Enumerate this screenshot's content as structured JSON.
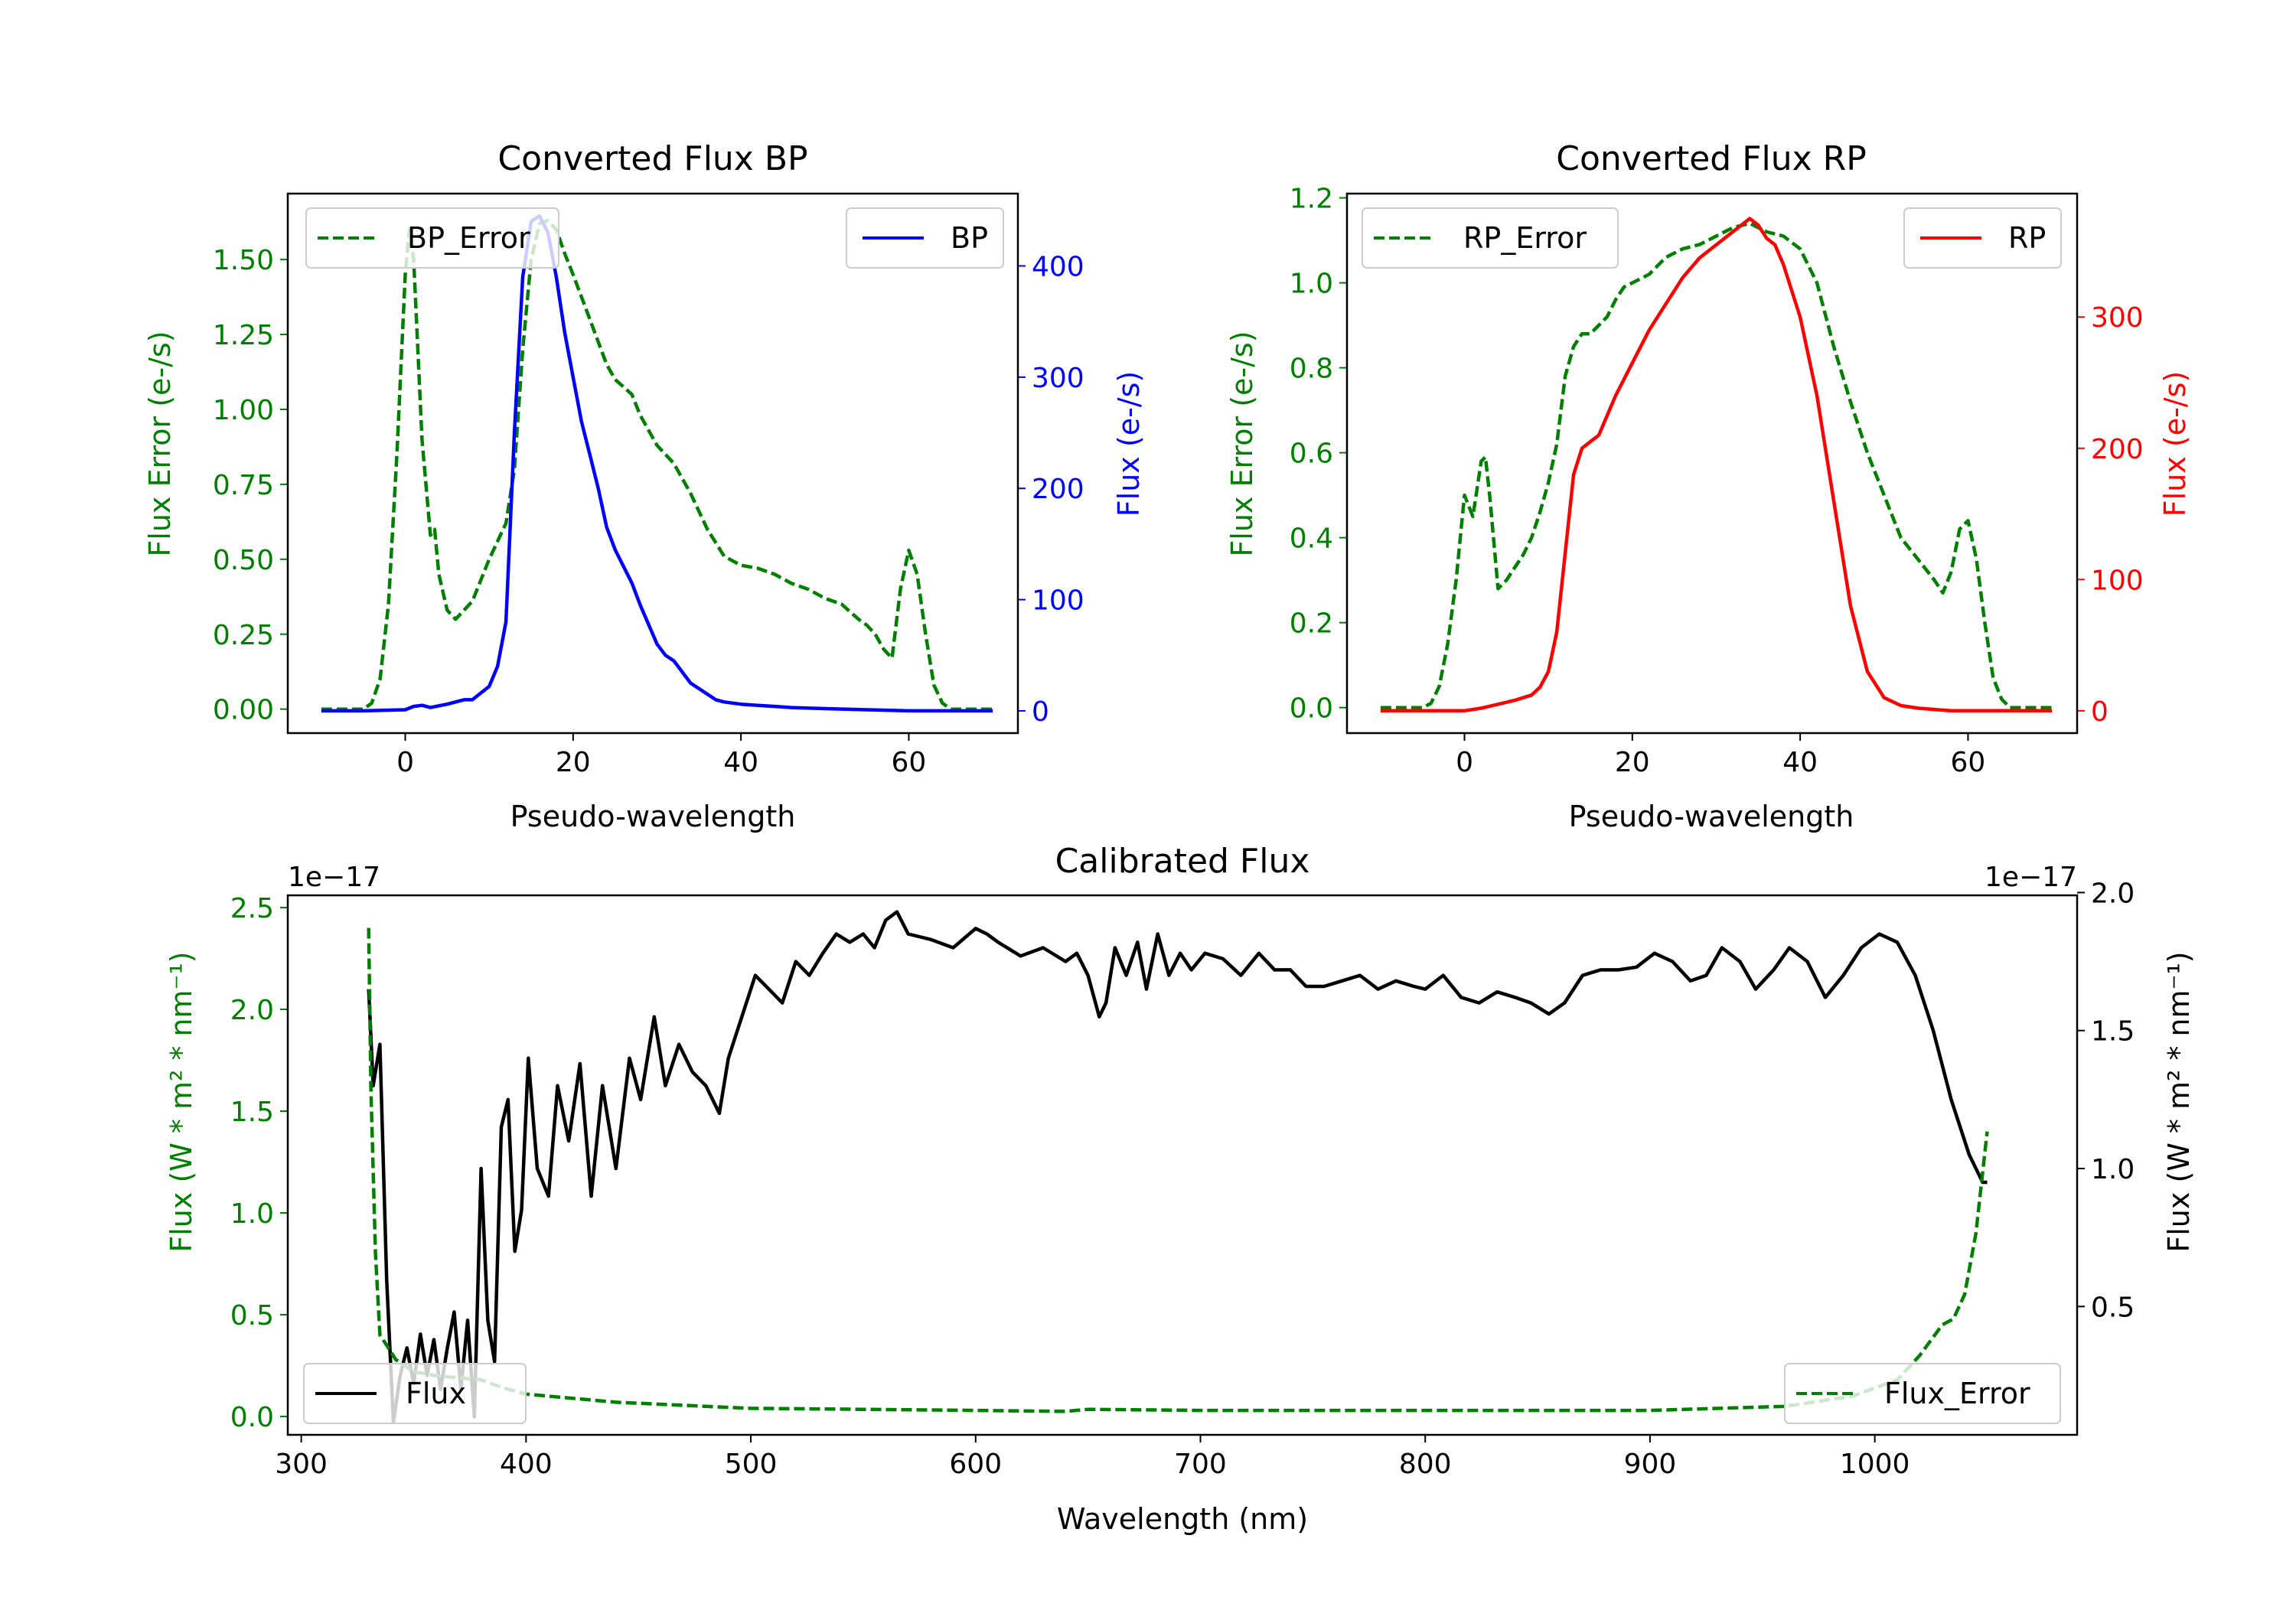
{
  "chart_data": [
    {
      "id": "bp",
      "type": "line",
      "title": "Converted Flux BP",
      "xlabel": "Pseudo-wavelength",
      "xlim": [
        -14,
        73
      ],
      "xticks": [
        0,
        20,
        40,
        60
      ],
      "left_axis": {
        "label": "Flux Error (e-/s)",
        "color": "#008000",
        "ylim": [
          -0.08,
          1.72
        ],
        "ticks": [
          0.0,
          0.25,
          0.5,
          0.75,
          1.0,
          1.25,
          1.5
        ],
        "tick_labels": [
          "0.00",
          "0.25",
          "0.50",
          "0.75",
          "1.00",
          "1.25",
          "1.50"
        ]
      },
      "right_axis": {
        "label": "Flux (e-/s)",
        "color": "#0000ff",
        "ylim": [
          -20,
          465
        ],
        "ticks": [
          0,
          100,
          200,
          300,
          400
        ],
        "tick_labels": [
          "0",
          "100",
          "200",
          "300",
          "400"
        ]
      },
      "series": [
        {
          "name": "BP_Error",
          "axis": "left",
          "color": "#008000",
          "style": "dashed",
          "x": [
            -10,
            -5,
            -4,
            -3,
            -2,
            -1,
            0,
            0.5,
            1,
            2,
            3,
            3.5,
            4,
            5,
            6,
            8,
            10,
            12,
            13,
            14,
            15,
            16,
            17,
            18,
            19,
            20,
            22,
            24,
            25,
            27,
            28,
            30,
            32,
            34,
            36,
            38,
            40,
            42,
            44,
            46,
            48,
            50,
            52,
            54,
            55,
            56,
            57,
            58,
            59,
            60,
            61,
            62,
            63,
            64,
            65,
            70
          ],
          "y": [
            0,
            0,
            0.02,
            0.1,
            0.35,
            0.85,
            1.45,
            1.6,
            1.5,
            0.9,
            0.58,
            0.6,
            0.45,
            0.33,
            0.3,
            0.36,
            0.5,
            0.62,
            0.8,
            1.2,
            1.5,
            1.62,
            1.63,
            1.6,
            1.52,
            1.45,
            1.3,
            1.15,
            1.1,
            1.05,
            0.98,
            0.88,
            0.82,
            0.72,
            0.6,
            0.51,
            0.48,
            0.47,
            0.45,
            0.42,
            0.4,
            0.37,
            0.35,
            0.3,
            0.28,
            0.25,
            0.2,
            0.17,
            0.4,
            0.53,
            0.45,
            0.25,
            0.08,
            0.02,
            0,
            0
          ]
        },
        {
          "name": "BP",
          "axis": "right",
          "color": "#0000ff",
          "style": "solid",
          "x": [
            -10,
            -5,
            0,
            1,
            2,
            3,
            5,
            7,
            8,
            10,
            11,
            12,
            13,
            14,
            15,
            16,
            17,
            18,
            19,
            20,
            21,
            22,
            23,
            24,
            25,
            26,
            27,
            28,
            30,
            31,
            32,
            33,
            34,
            35,
            36,
            37,
            38,
            40,
            42,
            44,
            46,
            50,
            55,
            60,
            65,
            70
          ],
          "y": [
            0,
            0,
            1,
            4,
            5,
            3,
            6,
            10,
            10,
            22,
            40,
            80,
            250,
            390,
            440,
            445,
            430,
            390,
            340,
            300,
            260,
            230,
            200,
            165,
            145,
            130,
            115,
            95,
            60,
            50,
            45,
            35,
            25,
            20,
            15,
            10,
            8,
            6,
            5,
            4,
            3,
            2,
            1,
            0,
            0,
            0
          ]
        }
      ],
      "legend": [
        {
          "label": "BP_Error",
          "position": "upper-left"
        },
        {
          "label": "BP",
          "position": "upper-right"
        }
      ]
    },
    {
      "id": "rp",
      "type": "line",
      "title": "Converted Flux RP",
      "xlabel": "Pseudo-wavelength",
      "xlim": [
        -14,
        73
      ],
      "xticks": [
        0,
        20,
        40,
        60
      ],
      "left_axis": {
        "label": "Flux Error (e-/s)",
        "color": "#008000",
        "ylim": [
          -0.06,
          1.21
        ],
        "ticks": [
          0.0,
          0.2,
          0.4,
          0.6,
          0.8,
          1.0,
          1.2
        ],
        "tick_labels": [
          "0.0",
          "0.2",
          "0.4",
          "0.6",
          "0.8",
          "1.0",
          "1.2"
        ]
      },
      "right_axis": {
        "label": "Flux (e-/s)",
        "color": "#ff0000",
        "ylim": [
          -17,
          394
        ],
        "ticks": [
          0,
          100,
          200,
          300
        ],
        "tick_labels": [
          "0",
          "100",
          "200",
          "300"
        ]
      },
      "series": [
        {
          "name": "RP_Error",
          "axis": "left",
          "color": "#008000",
          "style": "dashed",
          "x": [
            -10,
            -5,
            -4,
            -3,
            -2,
            -1,
            0,
            1,
            2,
            2.5,
            3,
            4,
            5,
            6,
            7,
            8,
            9,
            10,
            11,
            12,
            13,
            14,
            15,
            16,
            17,
            18,
            19,
            20,
            22,
            24,
            26,
            28,
            30,
            32,
            34,
            36,
            38,
            40,
            42,
            44,
            46,
            48,
            50,
            52,
            54,
            56,
            57,
            58,
            59,
            60,
            61,
            62,
            63,
            64,
            65,
            70
          ],
          "y": [
            0,
            0,
            0.01,
            0.05,
            0.15,
            0.3,
            0.5,
            0.45,
            0.58,
            0.59,
            0.5,
            0.28,
            0.3,
            0.33,
            0.36,
            0.4,
            0.46,
            0.53,
            0.62,
            0.78,
            0.85,
            0.88,
            0.88,
            0.9,
            0.92,
            0.96,
            0.99,
            1.0,
            1.02,
            1.06,
            1.08,
            1.09,
            1.11,
            1.13,
            1.14,
            1.12,
            1.11,
            1.08,
            1.0,
            0.85,
            0.72,
            0.6,
            0.5,
            0.4,
            0.35,
            0.3,
            0.27,
            0.32,
            0.42,
            0.44,
            0.35,
            0.2,
            0.07,
            0.02,
            0,
            0
          ]
        },
        {
          "name": "RP",
          "axis": "right",
          "color": "#ff0000",
          "style": "solid",
          "x": [
            -10,
            -5,
            -2,
            0,
            2,
            4,
            6,
            8,
            9,
            10,
            11,
            12,
            13,
            14,
            15,
            16,
            18,
            20,
            22,
            24,
            26,
            28,
            30,
            32,
            34,
            35,
            36,
            37,
            38,
            40,
            42,
            44,
            46,
            48,
            50,
            52,
            54,
            56,
            58,
            60,
            65,
            70
          ],
          "y": [
            0,
            0,
            0,
            0,
            2,
            5,
            8,
            12,
            18,
            30,
            60,
            120,
            180,
            200,
            205,
            210,
            240,
            265,
            290,
            310,
            330,
            345,
            355,
            365,
            375,
            370,
            360,
            355,
            340,
            300,
            240,
            160,
            80,
            30,
            10,
            4,
            2,
            1,
            0,
            0,
            0,
            0
          ]
        }
      ],
      "legend": [
        {
          "label": "RP_Error",
          "position": "upper-left"
        },
        {
          "label": "RP",
          "position": "upper-right"
        }
      ]
    },
    {
      "id": "cal",
      "type": "line",
      "title": "Calibrated Flux",
      "xlabel": "Wavelength (nm)",
      "xlim": [
        294,
        1090
      ],
      "xticks": [
        300,
        400,
        500,
        600,
        700,
        800,
        900,
        1000
      ],
      "left_axis": {
        "label": "Flux (W * m² * nm⁻¹)",
        "color": "#008000",
        "ylim": [
          -0.09,
          2.56
        ],
        "ticks": [
          0.0,
          0.5,
          1.0,
          1.5,
          2.0,
          2.5
        ],
        "tick_labels": [
          "0.0",
          "0.5",
          "1.0",
          "1.5",
          "2.0",
          "2.5"
        ],
        "offset_text": "1e−17"
      },
      "right_axis": {
        "label": "Flux (W * m² * nm⁻¹)",
        "color": "#000000",
        "ylim": [
          0.035,
          1.99
        ],
        "ticks": [
          0.5,
          1.0,
          1.5,
          2.0
        ],
        "tick_labels": [
          "0.5",
          "1.0",
          "1.5",
          "2.0"
        ],
        "offset_text": "1e−17"
      },
      "series": [
        {
          "name": "Flux",
          "axis": "right",
          "color": "#000000",
          "style": "solid",
          "x": [
            330,
            332,
            335,
            338,
            341,
            344,
            347,
            350,
            353,
            356,
            359,
            362,
            365,
            368,
            371,
            374,
            377,
            380,
            383,
            386,
            389,
            392,
            395,
            398,
            401,
            405,
            410,
            414,
            419,
            424,
            429,
            434,
            440,
            446,
            451,
            457,
            462,
            468,
            474,
            480,
            486,
            490,
            496,
            502,
            508,
            514,
            520,
            526,
            532,
            538,
            544,
            550,
            555,
            560,
            565,
            570,
            580,
            590,
            600,
            605,
            610,
            620,
            630,
            640,
            645,
            650,
            655,
            658,
            662,
            667,
            672,
            676,
            681,
            686,
            691,
            696,
            702,
            710,
            718,
            726,
            733,
            740,
            747,
            755,
            763,
            771,
            779,
            787,
            795,
            800,
            808,
            816,
            824,
            832,
            840,
            847,
            855,
            862,
            870,
            878,
            886,
            894,
            902,
            910,
            918,
            925,
            932,
            940,
            947,
            955,
            962,
            970,
            978,
            986,
            994,
            1002,
            1010,
            1018,
            1026,
            1034,
            1042,
            1048,
            1050
          ],
          "y": [
            1.65,
            1.3,
            1.45,
            0.6,
            0.08,
            0.25,
            0.35,
            0.22,
            0.4,
            0.25,
            0.38,
            0.2,
            0.35,
            0.48,
            0.2,
            0.45,
            0.1,
            1.0,
            0.45,
            0.3,
            1.15,
            1.25,
            0.7,
            0.85,
            1.4,
            1.0,
            0.9,
            1.3,
            1.1,
            1.38,
            0.9,
            1.3,
            1.0,
            1.4,
            1.25,
            1.55,
            1.3,
            1.45,
            1.35,
            1.3,
            1.2,
            1.4,
            1.55,
            1.7,
            1.65,
            1.6,
            1.75,
            1.7,
            1.78,
            1.85,
            1.82,
            1.85,
            1.8,
            1.9,
            1.93,
            1.85,
            1.83,
            1.8,
            1.87,
            1.85,
            1.82,
            1.77,
            1.8,
            1.75,
            1.78,
            1.7,
            1.55,
            1.6,
            1.8,
            1.7,
            1.82,
            1.65,
            1.85,
            1.7,
            1.78,
            1.72,
            1.78,
            1.76,
            1.7,
            1.78,
            1.72,
            1.72,
            1.66,
            1.66,
            1.68,
            1.7,
            1.65,
            1.68,
            1.66,
            1.65,
            1.7,
            1.62,
            1.6,
            1.64,
            1.62,
            1.6,
            1.56,
            1.6,
            1.7,
            1.72,
            1.72,
            1.73,
            1.78,
            1.75,
            1.68,
            1.7,
            1.8,
            1.75,
            1.65,
            1.72,
            1.8,
            1.75,
            1.62,
            1.7,
            1.8,
            1.85,
            1.82,
            1.7,
            1.5,
            1.25,
            1.05,
            0.95,
            0.95
          ]
        },
        {
          "name": "Flux_Error",
          "axis": "left",
          "color": "#008000",
          "style": "dashed",
          "x": [
            330,
            331,
            333,
            335,
            338,
            342,
            350,
            360,
            370,
            380,
            390,
            400,
            420,
            440,
            460,
            480,
            500,
            550,
            600,
            640,
            650,
            700,
            800,
            900,
            960,
            990,
            1010,
            1020,
            1030,
            1035,
            1040,
            1045,
            1048,
            1050
          ],
          "y": [
            2.4,
            1.6,
            0.8,
            0.4,
            0.35,
            0.28,
            0.22,
            0.2,
            0.19,
            0.18,
            0.14,
            0.11,
            0.09,
            0.07,
            0.06,
            0.05,
            0.04,
            0.035,
            0.03,
            0.025,
            0.035,
            0.03,
            0.03,
            0.03,
            0.05,
            0.1,
            0.18,
            0.3,
            0.45,
            0.48,
            0.6,
            0.9,
            1.2,
            1.4
          ]
        }
      ],
      "legend": [
        {
          "label": "Flux",
          "position": "lower-left"
        },
        {
          "label": "Flux_Error",
          "position": "lower-right"
        }
      ]
    }
  ]
}
